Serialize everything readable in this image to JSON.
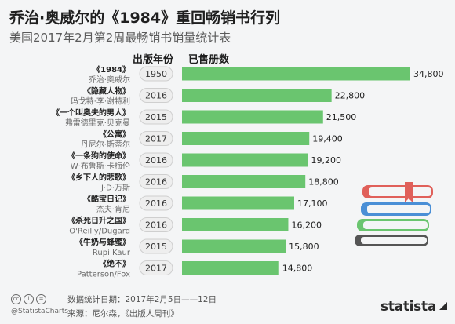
{
  "header": {
    "title": "乔治·奥威尔的《1984》重回畅销书行列",
    "subtitle": "美国2017年2月第2周最畅销书销量统计表",
    "col_year": "出版年份",
    "col_sold": "已售册数"
  },
  "chart_data": {
    "type": "bar",
    "orientation": "horizontal",
    "categories": [
      {
        "book": "《1984》",
        "author": "乔治·奥威尔",
        "year": "1950"
      },
      {
        "book": "《隐藏人物》",
        "author": "玛戈特·李·谢特利",
        "year": "2016"
      },
      {
        "book": "《一个叫奥夫的男人》",
        "author": "弗雷德里克·贝克曼",
        "year": "2015"
      },
      {
        "book": "《公寓》",
        "author": "丹尼尔·斯蒂尔",
        "year": "2017"
      },
      {
        "book": "《一条狗的使命》",
        "author": "W·布鲁斯·卡梅伦",
        "year": "2016"
      },
      {
        "book": "《乡下人的悲歌》",
        "author": "J·D·万斯",
        "year": "2016"
      },
      {
        "book": "《酷宝日记》",
        "author": "杰夫·肯尼",
        "year": "2016"
      },
      {
        "book": "《杀死日升之国》",
        "author": "O'Reilly/Dugard",
        "year": "2016"
      },
      {
        "book": "《牛奶与蜂蜜》",
        "author": "Rupi Kaur",
        "year": "2015"
      },
      {
        "book": "《绝不》",
        "author": "Patterson/Fox",
        "year": "2017"
      }
    ],
    "values": [
      34800,
      22800,
      21500,
      19400,
      19200,
      18800,
      17100,
      16200,
      15800,
      14800
    ],
    "value_labels": [
      "34,800",
      "22,800",
      "21,500",
      "19,400",
      "19,200",
      "18,800",
      "17,100",
      "16,200",
      "15,800",
      "14,800"
    ],
    "xlim": [
      0,
      34800
    ],
    "grid": false,
    "bar_color": "#6ac56f"
  },
  "footer": {
    "handle": "@StatistaCharts",
    "date_line": "数据统计日期：2017年2月5日——12日",
    "source_line": "来源：尼尔森，《出版人周刊》",
    "brand": "statista"
  },
  "colors": {
    "bar": "#6ac56f",
    "book_red": "#e0605a",
    "book_blue": "#4a8fd6",
    "book_green": "#6ac56f",
    "book_gray": "#555555",
    "year_pill": "#eeeeee"
  }
}
